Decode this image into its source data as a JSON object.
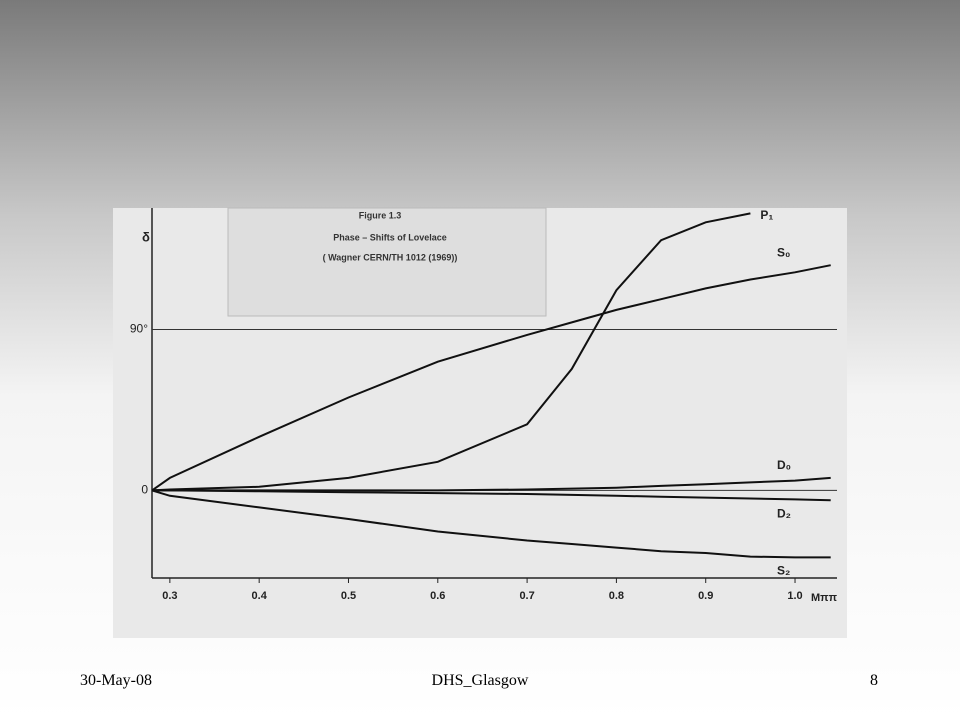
{
  "chart_data": {
    "type": "line",
    "title": "Figure 1.3",
    "subtitle": "Phase – Shifts of Lovelace",
    "annotation": "( Wagner CERN/TH 1012 (1969))",
    "y_label": "δ",
    "x_label": "Mππ",
    "x": [
      0.28,
      0.3,
      0.4,
      0.5,
      0.6,
      0.7,
      0.75,
      0.8,
      0.85,
      0.9,
      0.95,
      1.0,
      1.04
    ],
    "series": [
      {
        "name": "P₁",
        "color": "#111111",
        "values": [
          0,
          0.5,
          2,
          7,
          16,
          37,
          68,
          112,
          140,
          150,
          155,
          null,
          null
        ]
      },
      {
        "name": "S₀",
        "color": "#111111",
        "values": [
          0,
          7,
          30,
          52,
          72,
          87,
          94,
          101,
          107,
          113,
          118,
          122,
          126
        ]
      },
      {
        "name": "D₀",
        "color": "#111111",
        "values": [
          0,
          0,
          0,
          0,
          0,
          0.5,
          1,
          1.5,
          2.5,
          3.5,
          4.5,
          5.5,
          7
        ]
      },
      {
        "name": "D₂",
        "color": "#111111",
        "values": [
          0,
          0,
          -0.5,
          -1,
          -1.5,
          -2,
          -2.5,
          -3,
          -3.5,
          -4,
          -4.5,
          -5,
          -5.5
        ]
      },
      {
        "name": "S₂",
        "color": "#111111",
        "values": [
          0,
          -3,
          -9.5,
          -16,
          -23,
          -28,
          -30,
          -32,
          -34,
          -35,
          -37,
          -37.5,
          -37.5
        ]
      }
    ],
    "xlim": [
      0.28,
      1.047
    ],
    "ylim": [
      -49,
      158
    ],
    "xticks": [
      0.3,
      0.4,
      0.5,
      0.6,
      0.7,
      0.8,
      0.9,
      {
        "value": 1,
        "label": "1.0"
      }
    ],
    "yticks": [
      0,
      {
        "value": 90,
        "label": "90°"
      }
    ],
    "grid": true
  },
  "footer": {
    "date": "30-May-08",
    "title": "DHS_Glasgow",
    "page": "8"
  }
}
